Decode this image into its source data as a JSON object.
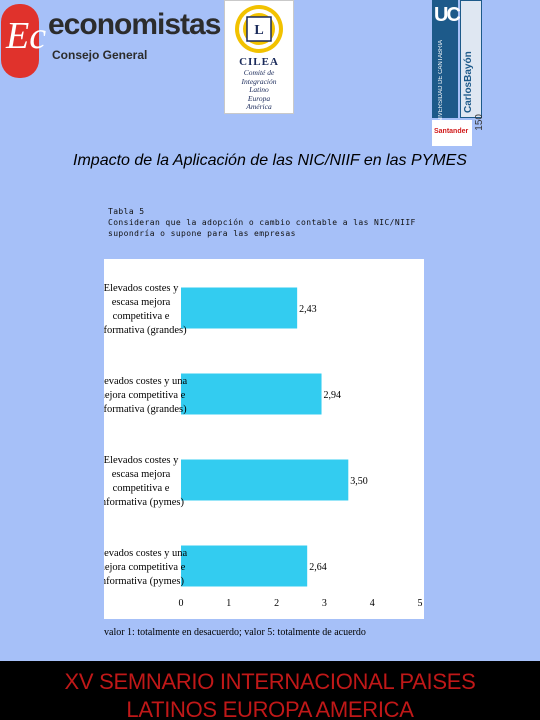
{
  "logos": {
    "economistas": {
      "mark": "Ec",
      "name": "economistas",
      "sub": "Consejo General"
    },
    "cilea": {
      "name": "CILEA",
      "text": "Comité de\nIntegración\nLatino\nEuropa\nAmérica"
    },
    "uc": {
      "letters": "UC",
      "vertical": "UNIVERSIDAD DE CANTABRIA",
      "side": "CarlosBayón"
    },
    "santander": {
      "name": "Santander"
    },
    "anniversary": {
      "text": "150"
    }
  },
  "title": "Impacto de la Aplicación de las NIC/NIIF en las PYMES",
  "caption": {
    "line1": "Tabla 5",
    "line2": "Consideran que la adopción o cambio contable a las NIC/NIIF",
    "line3": "supondría o supone para las empresas"
  },
  "chart_data": {
    "type": "bar",
    "orientation": "horizontal",
    "categories": [
      "Elevados costes y\nescasa mejora\ncompetitiva e\ninformativa (grandes)",
      "Elevados costes y una\nmejora competitiva e\ninformativa (grandes)",
      "Elevados costes y\nescasa mejora\ncompetitiva e\ninformativa (pymes)",
      "Elevados costes y una\nmejora competitiva e\ninformativa (pymes)"
    ],
    "values": [
      2.43,
      2.94,
      3.5,
      2.64
    ],
    "data_labels": [
      "2,43",
      "2,94",
      "3,50",
      "2,64"
    ],
    "xlim": [
      0,
      5
    ],
    "ticks": [
      "0",
      "1",
      "2",
      "3",
      "4",
      "5"
    ],
    "bar_color": "#33ccf0",
    "grid": false
  },
  "footnote": "valor 1: totalmente en desacuerdo; valor 5: totalmente de acuerdo",
  "footer": {
    "line1": "XV SEMNARIO INTERNACIONAL PAISES",
    "line2": "LATINOS EUROPA AMERICA"
  }
}
